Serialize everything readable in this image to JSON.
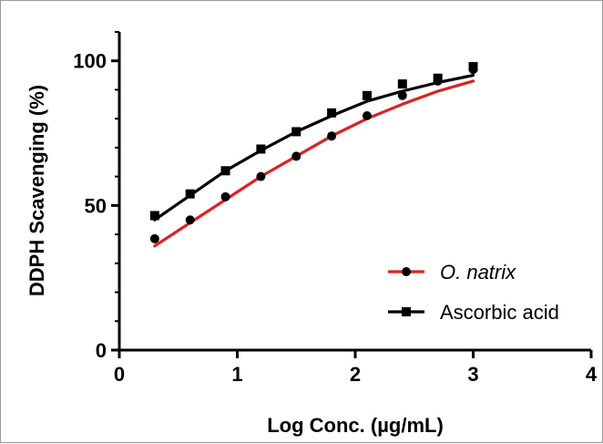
{
  "chart_data": {
    "type": "scatter",
    "xlabel": "Log  Conc. (µg/mL)",
    "ylabel": "DDPH Scavenging (%)",
    "xlim": [
      0,
      4
    ],
    "ylim": [
      0,
      110
    ],
    "xticks": [
      "0",
      "1",
      "2",
      "3",
      "4"
    ],
    "yticks": [
      "0",
      "50",
      "100"
    ],
    "x_tick_values": [
      0,
      1,
      2,
      3,
      4
    ],
    "y_tick_values": [
      0,
      50,
      100
    ],
    "grid": false,
    "legend_position": "bottom-right",
    "series": [
      {
        "name": "O. natrix",
        "italic": true,
        "marker": "circle",
        "marker_color": "#000000",
        "line_color": "#e02020",
        "x": [
          0.3,
          0.6,
          0.9,
          1.2,
          1.5,
          1.8,
          2.1,
          2.4,
          2.7,
          3.0
        ],
        "y": [
          38.5,
          45,
          53,
          60,
          67,
          74,
          81,
          88,
          93,
          97
        ],
        "fit_x": [
          0.3,
          0.6,
          0.9,
          1.2,
          1.5,
          1.8,
          2.1,
          2.4,
          2.7,
          3.0
        ],
        "fit_y": [
          36,
          44,
          52,
          60,
          67,
          74,
          80,
          85,
          89.5,
          93
        ]
      },
      {
        "name": "Ascorbic acid",
        "italic": false,
        "marker": "square",
        "marker_color": "#000000",
        "line_color": "#000000",
        "x": [
          0.3,
          0.6,
          0.9,
          1.2,
          1.5,
          1.8,
          2.1,
          2.4,
          2.7,
          3.0
        ],
        "y": [
          46.5,
          54,
          62,
          69.5,
          75.5,
          82,
          88,
          92,
          94,
          98
        ],
        "fit_x": [
          0.3,
          0.6,
          0.9,
          1.2,
          1.5,
          1.8,
          2.1,
          2.4,
          2.7,
          3.0
        ],
        "fit_y": [
          45,
          53.5,
          62,
          69,
          75.5,
          81,
          86,
          89.5,
          92.5,
          95
        ]
      }
    ]
  }
}
